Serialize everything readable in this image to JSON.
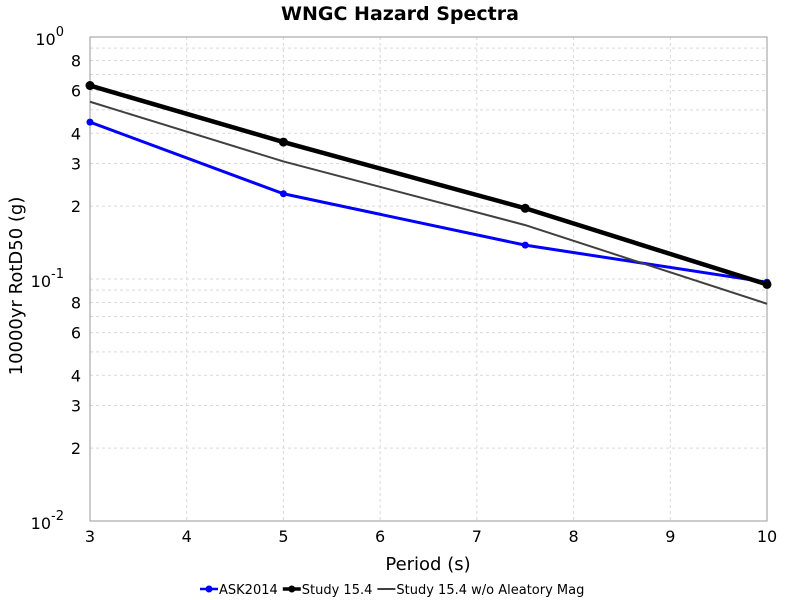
{
  "chart_data": {
    "type": "line",
    "title": "WNGC Hazard Spectra",
    "xlabel": "Period (s)",
    "ylabel": "10000yr RotD50 (g)",
    "xlim": [
      3,
      10
    ],
    "ylim": [
      0.01,
      1
    ],
    "yscale": "log",
    "grid": true,
    "legend_position": "bottom-center",
    "x_ticks": [
      "3",
      "4",
      "5",
      "6",
      "7",
      "8",
      "9",
      "10"
    ],
    "y_decade_labels": [
      {
        "base": "10",
        "exp": "-2"
      },
      {
        "base": "10",
        "exp": "-1"
      },
      {
        "base": "10",
        "exp": "0"
      }
    ],
    "y_minor_labels": [
      "2",
      "3",
      "4",
      "6",
      "8"
    ],
    "series": [
      {
        "name": "ASK2014",
        "color": "#0000ff",
        "width": 3,
        "markers": true,
        "x": [
          3,
          5,
          7.5,
          10
        ],
        "y": [
          0.445,
          0.225,
          0.138,
          0.097
        ]
      },
      {
        "name": "Study 15.4",
        "color": "#000000",
        "width": 4.5,
        "markers": true,
        "x": [
          3,
          5,
          7.5,
          10
        ],
        "y": [
          0.63,
          0.368,
          0.196,
          0.095
        ]
      },
      {
        "name": "Study 15.4 w/o Aleatory Mag",
        "color": "#404040",
        "width": 2,
        "markers": false,
        "x": [
          3,
          5,
          7.5,
          10
        ],
        "y": [
          0.54,
          0.306,
          0.167,
          0.079
        ]
      }
    ]
  }
}
